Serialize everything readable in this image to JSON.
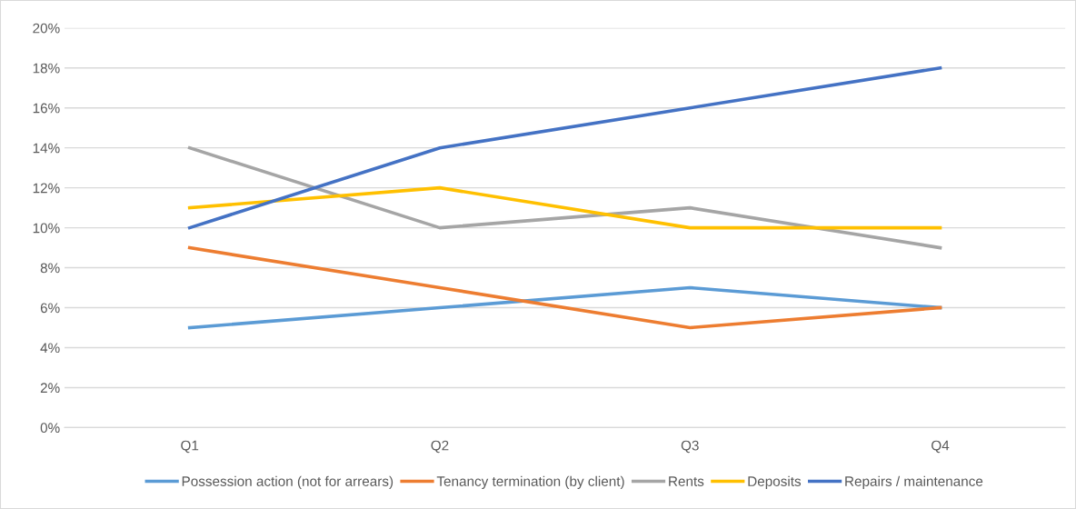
{
  "chart_data": {
    "type": "line",
    "categories": [
      "Q1",
      "Q2",
      "Q3",
      "Q4"
    ],
    "series": [
      {
        "name": "Possession action (not for arrears)",
        "color": "#5b9bd5",
        "values": [
          5,
          6,
          7,
          6
        ]
      },
      {
        "name": "Tenancy termination (by client)",
        "color": "#ed7d31",
        "values": [
          9,
          7,
          5,
          6
        ]
      },
      {
        "name": "Rents",
        "color": "#a5a5a5",
        "values": [
          14,
          10,
          11,
          9
        ]
      },
      {
        "name": "Deposits",
        "color": "#ffc000",
        "values": [
          11,
          12,
          10,
          10
        ]
      },
      {
        "name": "Repairs / maintenance",
        "color": "#4472c4",
        "values": [
          10,
          14,
          16,
          18
        ]
      }
    ],
    "ylim": [
      0,
      20
    ],
    "yticks": [
      {
        "value": 0,
        "label": "0%"
      },
      {
        "value": 2,
        "label": "2%"
      },
      {
        "value": 4,
        "label": "4%"
      },
      {
        "value": 6,
        "label": "6%"
      },
      {
        "value": 8,
        "label": "8%"
      },
      {
        "value": 10,
        "label": "10%"
      },
      {
        "value": 12,
        "label": "12%"
      },
      {
        "value": 14,
        "label": "14%"
      },
      {
        "value": 16,
        "label": "16%"
      },
      {
        "value": 18,
        "label": "18%"
      },
      {
        "value": 20,
        "label": "20%"
      }
    ],
    "grid": "y",
    "legend": "bottom",
    "marker": "none",
    "line_style": "solid"
  }
}
